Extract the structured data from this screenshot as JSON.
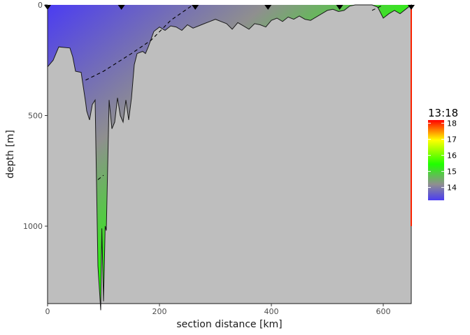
{
  "chart_data": {
    "type": "heatmap",
    "title": "",
    "xlabel": "section distance [km]",
    "ylabel": "depth [m]",
    "xlim": [
      0,
      650
    ],
    "ylim": [
      1350,
      0
    ],
    "x_ticks": [
      0,
      200,
      400,
      600
    ],
    "y_ticks": [
      0,
      500,
      1000
    ],
    "grid": false,
    "legend_position": "right",
    "colorbar": {
      "title": "13:18",
      "ticks": [
        14,
        15,
        16,
        17,
        18
      ],
      "range": [
        13.2,
        18.2
      ],
      "colors": [
        "#4b3cf2",
        "#8f8f8f",
        "#1fff00",
        "#ffff00",
        "#ff0000"
      ]
    },
    "stations_km": [
      0,
      132,
      264,
      394,
      522,
      650
    ],
    "bottom_profile": {
      "x": [
        0,
        10,
        20,
        40,
        45,
        50,
        60,
        68,
        70,
        75,
        80,
        85,
        90,
        95,
        97,
        100,
        103,
        105,
        110,
        115,
        120,
        125,
        130,
        135,
        140,
        145,
        150,
        155,
        160,
        170,
        175,
        180,
        190,
        200,
        210,
        220,
        230,
        240,
        250,
        260,
        270,
        280,
        290,
        300,
        310,
        320,
        330,
        340,
        350,
        360,
        370,
        380,
        390,
        400,
        410,
        420,
        430,
        440,
        450,
        460,
        470,
        480,
        490,
        500,
        510,
        520,
        530,
        540,
        550,
        560,
        570,
        580,
        590,
        600,
        610,
        620,
        630,
        640,
        650
      ],
      "y": [
        280,
        250,
        190,
        195,
        235,
        300,
        305,
        440,
        480,
        520,
        450,
        430,
        1180,
        1380,
        1010,
        1340,
        1000,
        1020,
        430,
        560,
        530,
        420,
        500,
        530,
        430,
        520,
        420,
        270,
        220,
        210,
        220,
        190,
        120,
        100,
        115,
        95,
        100,
        115,
        90,
        105,
        95,
        85,
        75,
        65,
        75,
        85,
        110,
        80,
        95,
        110,
        85,
        90,
        100,
        70,
        60,
        75,
        55,
        65,
        50,
        65,
        70,
        55,
        40,
        25,
        20,
        30,
        25,
        5,
        0,
        0,
        0,
        0,
        10,
        60,
        40,
        25,
        40,
        20,
        0
      ]
    },
    "isotherms": [
      {
        "x": [
          68,
          100,
          150,
          185,
          220,
          260
        ],
        "y": [
          340,
          300,
          220,
          160,
          70,
          0
        ]
      },
      {
        "x": [
          90,
          100
        ],
        "y": [
          790,
          770
        ]
      },
      {
        "x": [
          580,
          600
        ],
        "y": [
          25,
          0
        ]
      }
    ]
  }
}
